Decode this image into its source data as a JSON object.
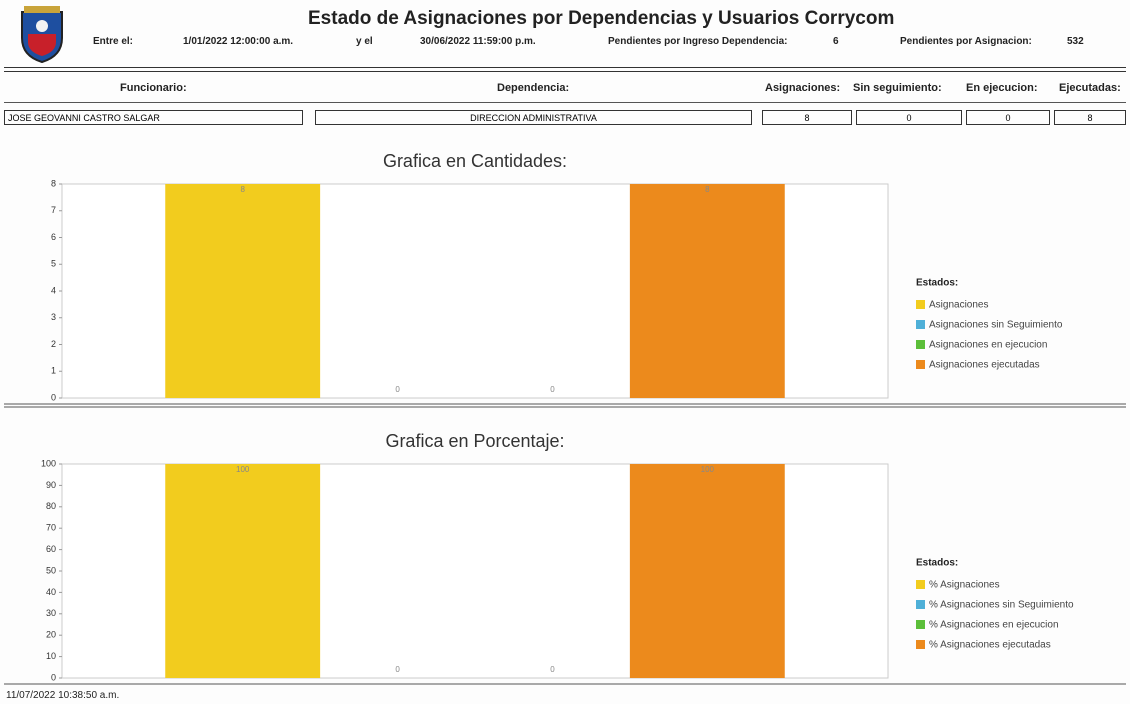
{
  "header": {
    "title": "Estado de Asignaciones por Dependencias y Usuarios Corrycom",
    "from_label": "Entre el:",
    "from": "1/01/2022 12:00:00 a.m.",
    "to_label": "y el",
    "to": "30/06/2022 11:59:00 p.m.",
    "pending_dep_label": "Pendientes por Ingreso Dependencia:",
    "pending_dep": 6,
    "pending_asig_label": "Pendientes por Asignacion:",
    "pending_asig": 532
  },
  "table": {
    "columns": [
      "Funcionario:",
      "Dependencia:",
      "Asignaciones:",
      "Sin seguimiento:",
      "En ejecucion:",
      "Ejecutadas:"
    ],
    "rows": [
      [
        "JOSE GEOVANNI CASTRO SALGAR",
        "DIRECCION ADMINISTRATIVA",
        8,
        0,
        0,
        8
      ]
    ]
  },
  "chart_data": [
    {
      "type": "bar",
      "title": "Grafica en Cantidades:",
      "legend_title": "Estados:",
      "legend": "right",
      "categories": [
        null
      ],
      "series": [
        {
          "name": "Asignaciones",
          "color": "#f2cc1e",
          "values": [
            8
          ]
        },
        {
          "name": "Asignaciones sin Seguimiento",
          "color": "#4fb0d8",
          "values": [
            0
          ]
        },
        {
          "name": "Asignaciones en ejecucion",
          "color": "#5cbf3a",
          "values": [
            0
          ]
        },
        {
          "name": "Asignaciones ejecutadas",
          "color": "#ec8a1c",
          "values": [
            8
          ]
        }
      ],
      "ylim": [
        0,
        8
      ],
      "yticks": [
        0,
        1,
        2,
        3,
        4,
        5,
        6,
        7,
        8
      ]
    },
    {
      "type": "bar",
      "title": "Grafica en Porcentaje:",
      "legend_title": "Estados:",
      "legend": "right",
      "categories": [
        null
      ],
      "series": [
        {
          "name": "% Asignaciones",
          "color": "#f2cc1e",
          "values": [
            100
          ]
        },
        {
          "name": "% Asignaciones sin Seguimiento",
          "color": "#4fb0d8",
          "values": [
            0
          ]
        },
        {
          "name": "% Asignaciones en ejecucion",
          "color": "#5cbf3a",
          "values": [
            0
          ]
        },
        {
          "name": "% Asignaciones ejecutadas",
          "color": "#ec8a1c",
          "values": [
            100
          ]
        }
      ],
      "ylim": [
        0,
        100
      ],
      "yticks": [
        0,
        10,
        20,
        30,
        40,
        50,
        60,
        70,
        80,
        90,
        100
      ]
    }
  ],
  "footer": {
    "timestamp": "11/07/2022 10:38:50 a.m."
  }
}
